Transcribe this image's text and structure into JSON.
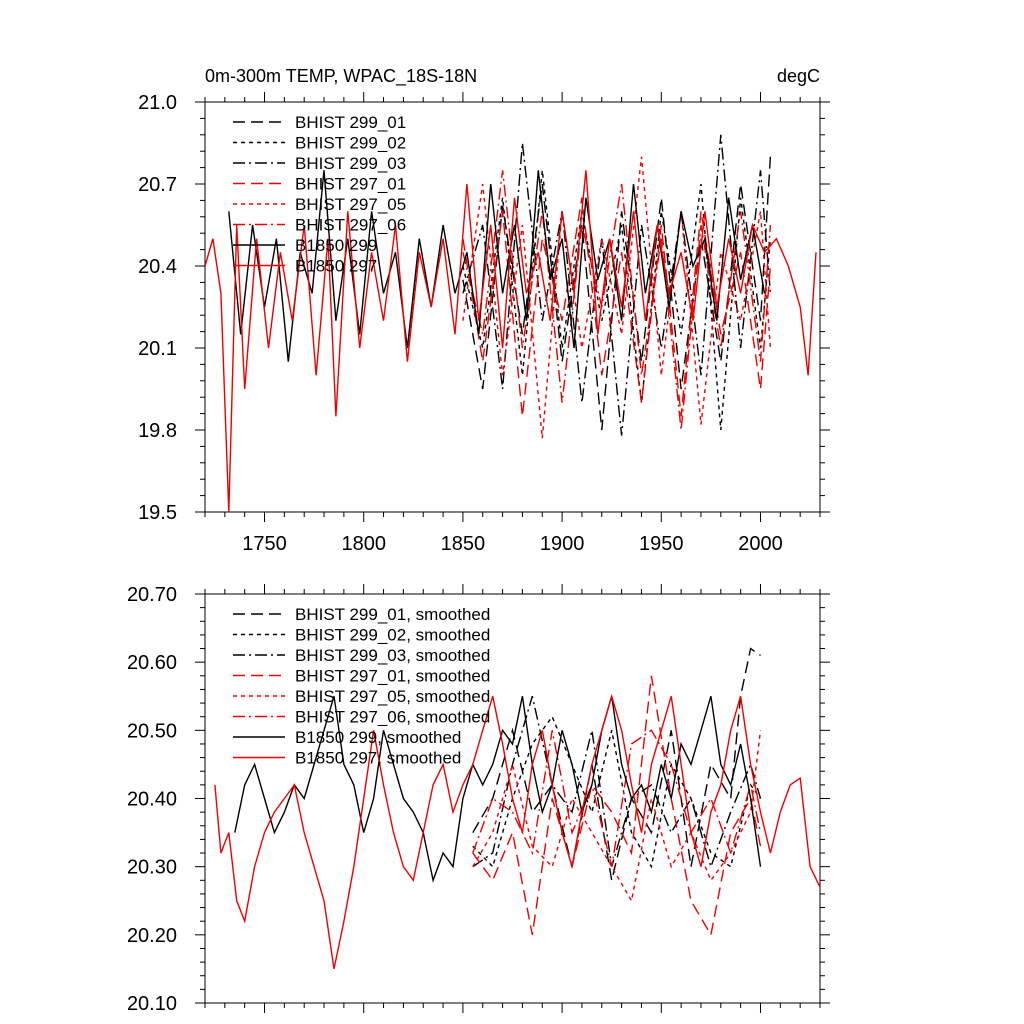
{
  "chart_data": [
    {
      "type": "line",
      "title": "0m-300m TEMP, WPAC_18S-18N",
      "units_label": "degC",
      "xlabel": "",
      "ylabel": "",
      "xlim": [
        1720,
        2030
      ],
      "ylim": [
        19.5,
        21.0
      ],
      "x_ticks": [
        1750,
        1800,
        1850,
        1900,
        1950,
        2000
      ],
      "x_tick_labels": [
        "1750",
        "1800",
        "1850",
        "1900",
        "1950",
        "2000"
      ],
      "y_ticks": [
        19.5,
        19.8,
        20.1,
        20.4,
        20.7,
        21.0
      ],
      "y_tick_labels": [
        "19.5",
        "19.8",
        "20.1",
        "20.4",
        "20.7",
        "21.0"
      ],
      "legend_position": "top-left",
      "series": [
        {
          "name": "BHIST 299_01",
          "color": "#000000",
          "dash": "long-dash",
          "x": [
            1850,
            1860,
            1870,
            1880,
            1890,
            1900,
            1910,
            1920,
            1930,
            1940,
            1950,
            1960,
            1970,
            1980,
            1990,
            2000,
            2005
          ],
          "y": [
            20.35,
            19.95,
            20.62,
            20.15,
            20.7,
            20.05,
            20.55,
            19.8,
            20.6,
            20.05,
            20.65,
            19.95,
            20.5,
            20.05,
            20.7,
            20.2,
            20.8
          ]
        },
        {
          "name": "BHIST 299_02",
          "color": "#000000",
          "dash": "short-dash",
          "x": [
            1850,
            1860,
            1870,
            1880,
            1890,
            1900,
            1910,
            1920,
            1930,
            1940,
            1950,
            1960,
            1970,
            1980,
            1990,
            2000,
            2005
          ],
          "y": [
            20.4,
            20.1,
            20.65,
            20.0,
            20.75,
            20.1,
            20.6,
            20.2,
            20.55,
            19.9,
            20.6,
            20.15,
            20.7,
            19.8,
            20.65,
            20.1,
            20.5
          ]
        },
        {
          "name": "BHIST 299_03",
          "color": "#000000",
          "dash": "dash-dot",
          "x": [
            1850,
            1860,
            1870,
            1880,
            1890,
            1900,
            1910,
            1920,
            1930,
            1940,
            1950,
            1960,
            1970,
            1980,
            1990,
            2000,
            2005
          ],
          "y": [
            20.3,
            20.55,
            19.95,
            20.85,
            20.2,
            20.6,
            19.9,
            20.5,
            19.78,
            20.55,
            20.1,
            20.6,
            20.0,
            20.88,
            20.1,
            20.75,
            20.3
          ]
        },
        {
          "name": "BHIST 297_01",
          "color": "#ee0000",
          "dash": "long-dash",
          "x": [
            1850,
            1860,
            1870,
            1880,
            1890,
            1900,
            1910,
            1920,
            1930,
            1940,
            1950,
            1960,
            1970,
            1980,
            1990,
            2000,
            2005
          ],
          "y": [
            20.5,
            20.05,
            20.6,
            19.85,
            20.5,
            20.2,
            20.65,
            20.0,
            20.45,
            19.9,
            20.55,
            19.85,
            20.6,
            20.15,
            20.45,
            19.95,
            20.4
          ]
        },
        {
          "name": "BHIST 297_05",
          "color": "#ee0000",
          "dash": "short-dash",
          "x": [
            1850,
            1860,
            1870,
            1880,
            1890,
            1900,
            1910,
            1920,
            1930,
            1940,
            1950,
            1960,
            1970,
            1980,
            1990,
            2000,
            2005
          ],
          "y": [
            20.2,
            20.7,
            20.0,
            20.55,
            19.77,
            20.6,
            20.1,
            20.5,
            20.15,
            20.8,
            20.0,
            20.6,
            19.82,
            20.45,
            20.2,
            20.6,
            20.1
          ]
        },
        {
          "name": "BHIST 297_06",
          "color": "#ee0000",
          "dash": "dash-dot",
          "x": [
            1850,
            1860,
            1870,
            1880,
            1890,
            1900,
            1910,
            1920,
            1930,
            1940,
            1950,
            1960,
            1970,
            1980,
            1990,
            2000,
            2005
          ],
          "y": [
            20.45,
            20.15,
            20.75,
            20.1,
            20.6,
            19.9,
            20.55,
            20.25,
            20.7,
            20.0,
            20.5,
            19.8,
            20.55,
            20.1,
            20.6,
            20.05,
            20.55
          ]
        },
        {
          "name": "B1850 299",
          "color": "#000000",
          "dash": "solid",
          "x": [
            1732,
            1738,
            1744,
            1750,
            1756,
            1762,
            1768,
            1774,
            1780,
            1786,
            1792,
            1798,
            1804,
            1810,
            1816,
            1822,
            1828,
            1834,
            1840,
            1846,
            1852,
            1858,
            1864,
            1870,
            1876,
            1882,
            1888,
            1894,
            1900,
            1906,
            1912,
            1918,
            1924,
            1930,
            1936,
            1942,
            1948,
            1954,
            1960,
            1966,
            1972,
            1978,
            1984,
            1990,
            1996,
            2002
          ],
          "y": [
            20.6,
            20.15,
            20.55,
            20.25,
            20.5,
            20.05,
            20.45,
            20.3,
            20.75,
            20.2,
            20.5,
            20.15,
            20.6,
            20.3,
            20.45,
            20.1,
            20.5,
            20.25,
            20.55,
            20.3,
            20.45,
            20.15,
            20.7,
            20.3,
            20.55,
            20.2,
            20.75,
            20.35,
            20.5,
            20.1,
            20.65,
            20.35,
            20.5,
            20.2,
            20.7,
            20.3,
            20.55,
            20.25,
            20.6,
            20.4,
            20.5,
            20.2,
            20.65,
            20.35,
            20.55,
            20.3
          ]
        },
        {
          "name": "B1850 297",
          "color": "#ee0000",
          "dash": "solid",
          "x": [
            1720,
            1724,
            1728,
            1732,
            1736,
            1740,
            1746,
            1752,
            1758,
            1764,
            1770,
            1776,
            1782,
            1786,
            1792,
            1798,
            1804,
            1810,
            1816,
            1822,
            1828,
            1834,
            1840,
            1846,
            1852,
            1858,
            1864,
            1870,
            1876,
            1882,
            1888,
            1894,
            1900,
            1906,
            1912,
            1918,
            1924,
            1930,
            1936,
            1942,
            1948,
            1954,
            1960,
            1966,
            1972,
            1978,
            1984,
            1990,
            1996,
            2002,
            2008,
            2014,
            2020,
            2024,
            2028
          ],
          "y": [
            20.4,
            20.5,
            20.3,
            19.5,
            20.55,
            19.95,
            20.5,
            20.1,
            20.45,
            20.2,
            20.55,
            20.0,
            20.5,
            19.85,
            20.6,
            20.1,
            20.45,
            20.2,
            20.55,
            20.05,
            20.45,
            20.25,
            20.5,
            20.15,
            20.7,
            20.2,
            20.55,
            20.1,
            20.65,
            20.3,
            20.45,
            20.2,
            20.6,
            20.3,
            20.75,
            20.15,
            20.5,
            20.25,
            20.6,
            20.2,
            20.55,
            20.3,
            20.45,
            20.2,
            20.6,
            20.25,
            20.5,
            20.3,
            20.55,
            20.45,
            20.5,
            20.4,
            20.25,
            20.0,
            20.45
          ]
        }
      ]
    },
    {
      "type": "line",
      "title": "",
      "xlabel": "",
      "ylabel": "",
      "xlim": [
        1720,
        2030
      ],
      "ylim": [
        20.1,
        20.7
      ],
      "x_ticks": [
        1750,
        1800,
        1850,
        1900,
        1950,
        2000
      ],
      "x_tick_labels": [],
      "y_ticks": [
        20.1,
        20.2,
        20.3,
        20.4,
        20.5,
        20.6,
        20.7
      ],
      "y_tick_labels": [
        "20.10",
        "20.20",
        "20.30",
        "20.40",
        "20.50",
        "20.60",
        "20.70"
      ],
      "legend_position": "top-left",
      "series": [
        {
          "name": "BHIST 299_01, smoothed",
          "color": "#000000",
          "dash": "long-dash",
          "x": [
            1855,
            1865,
            1875,
            1885,
            1895,
            1905,
            1915,
            1925,
            1935,
            1945,
            1955,
            1965,
            1975,
            1985,
            1990,
            1995,
            2000
          ],
          "y": [
            20.35,
            20.4,
            20.5,
            20.38,
            20.42,
            20.3,
            20.45,
            20.28,
            20.4,
            20.35,
            20.5,
            20.3,
            20.45,
            20.4,
            20.55,
            20.62,
            20.61
          ]
        },
        {
          "name": "BHIST 299_02, smoothed",
          "color": "#000000",
          "dash": "short-dash",
          "x": [
            1855,
            1865,
            1875,
            1885,
            1895,
            1905,
            1915,
            1925,
            1935,
            1945,
            1955,
            1965,
            1975,
            1985,
            1995,
            2000
          ],
          "y": [
            20.33,
            20.3,
            20.4,
            20.48,
            20.52,
            20.45,
            20.38,
            20.5,
            20.35,
            20.3,
            20.45,
            20.4,
            20.32,
            20.3,
            20.42,
            20.4
          ]
        },
        {
          "name": "BHIST 299_03, smoothed",
          "color": "#000000",
          "dash": "dash-dot",
          "x": [
            1855,
            1865,
            1875,
            1885,
            1895,
            1905,
            1915,
            1925,
            1935,
            1945,
            1955,
            1965,
            1975,
            1985,
            1995,
            2000
          ],
          "y": [
            20.3,
            20.32,
            20.45,
            20.55,
            20.42,
            20.38,
            20.5,
            20.3,
            20.4,
            20.42,
            20.35,
            20.4,
            20.3,
            20.38,
            20.45,
            20.4
          ]
        },
        {
          "name": "BHIST 297_01, smoothed",
          "color": "#ee0000",
          "dash": "long-dash",
          "x": [
            1855,
            1865,
            1875,
            1885,
            1895,
            1905,
            1915,
            1925,
            1935,
            1945,
            1955,
            1965,
            1975,
            1985,
            1995,
            2000
          ],
          "y": [
            20.32,
            20.28,
            20.35,
            20.2,
            20.4,
            20.3,
            20.42,
            20.38,
            20.32,
            20.58,
            20.4,
            20.25,
            20.2,
            20.35,
            20.4,
            20.33
          ]
        },
        {
          "name": "BHIST 297_05, smoothed",
          "color": "#ee0000",
          "dash": "short-dash",
          "x": [
            1855,
            1865,
            1875,
            1885,
            1895,
            1905,
            1915,
            1925,
            1935,
            1945,
            1955,
            1965,
            1975,
            1985,
            1995,
            2000
          ],
          "y": [
            20.3,
            20.35,
            20.45,
            20.33,
            20.3,
            20.4,
            20.35,
            20.3,
            20.25,
            20.4,
            20.3,
            20.35,
            20.28,
            20.32,
            20.38,
            20.5
          ]
        },
        {
          "name": "BHIST 297_06, smoothed",
          "color": "#ee0000",
          "dash": "dash-dot",
          "x": [
            1855,
            1865,
            1875,
            1885,
            1895,
            1905,
            1915,
            1925,
            1935,
            1945,
            1955,
            1965,
            1975,
            1985,
            1995,
            2000
          ],
          "y": [
            20.32,
            20.4,
            20.38,
            20.32,
            20.5,
            20.35,
            20.42,
            20.3,
            20.48,
            20.5,
            20.45,
            20.35,
            20.4,
            20.32,
            20.42,
            20.35
          ]
        },
        {
          "name": "B1850 299, smoothed",
          "color": "#000000",
          "dash": "solid",
          "x": [
            1735,
            1740,
            1745,
            1750,
            1755,
            1760,
            1765,
            1770,
            1775,
            1780,
            1785,
            1790,
            1795,
            1800,
            1805,
            1810,
            1815,
            1820,
            1825,
            1830,
            1835,
            1840,
            1845,
            1850,
            1855,
            1860,
            1865,
            1870,
            1875,
            1880,
            1885,
            1890,
            1895,
            1900,
            1905,
            1910,
            1915,
            1920,
            1925,
            1930,
            1935,
            1940,
            1945,
            1950,
            1955,
            1960,
            1965,
            1970,
            1975,
            1980,
            1985,
            1990,
            1995,
            2000
          ],
          "y": [
            20.35,
            20.42,
            20.45,
            20.4,
            20.35,
            20.38,
            20.42,
            20.4,
            20.45,
            20.5,
            20.55,
            20.45,
            20.42,
            20.35,
            20.4,
            20.5,
            20.45,
            20.4,
            20.38,
            20.35,
            20.28,
            20.32,
            20.3,
            20.4,
            20.45,
            20.42,
            20.45,
            20.5,
            20.48,
            20.55,
            20.45,
            20.38,
            20.42,
            20.5,
            20.45,
            20.38,
            20.42,
            20.5,
            20.55,
            20.45,
            20.4,
            20.42,
            20.38,
            20.45,
            20.4,
            20.48,
            20.45,
            20.5,
            20.55,
            20.45,
            20.42,
            20.48,
            20.4,
            20.3
          ]
        },
        {
          "name": "B1850 297, smoothed",
          "color": "#ee0000",
          "dash": "solid",
          "x": [
            1725,
            1728,
            1732,
            1736,
            1740,
            1745,
            1750,
            1755,
            1760,
            1765,
            1770,
            1775,
            1780,
            1785,
            1790,
            1795,
            1800,
            1805,
            1810,
            1815,
            1820,
            1825,
            1830,
            1835,
            1840,
            1845,
            1850,
            1855,
            1860,
            1865,
            1870,
            1875,
            1880,
            1885,
            1890,
            1895,
            1900,
            1905,
            1910,
            1915,
            1920,
            1925,
            1930,
            1935,
            1940,
            1945,
            1950,
            1955,
            1960,
            1965,
            1970,
            1975,
            1980,
            1985,
            1990,
            1995,
            2000,
            2005,
            2010,
            2015,
            2020,
            2025,
            2030
          ],
          "y": [
            20.42,
            20.32,
            20.35,
            20.25,
            20.22,
            20.3,
            20.35,
            20.38,
            20.4,
            20.42,
            20.35,
            20.3,
            20.25,
            20.15,
            20.22,
            20.3,
            20.4,
            20.5,
            20.42,
            20.35,
            20.3,
            20.28,
            20.35,
            20.42,
            20.45,
            20.38,
            20.42,
            20.45,
            20.5,
            20.55,
            20.48,
            20.4,
            20.35,
            20.45,
            20.5,
            20.42,
            20.35,
            20.3,
            20.38,
            20.45,
            20.5,
            20.55,
            20.5,
            20.42,
            20.35,
            20.45,
            20.5,
            20.55,
            20.45,
            20.35,
            20.3,
            20.38,
            20.42,
            20.5,
            20.55,
            20.45,
            20.38,
            20.32,
            20.38,
            20.42,
            20.43,
            20.3,
            20.27
          ]
        }
      ]
    }
  ]
}
